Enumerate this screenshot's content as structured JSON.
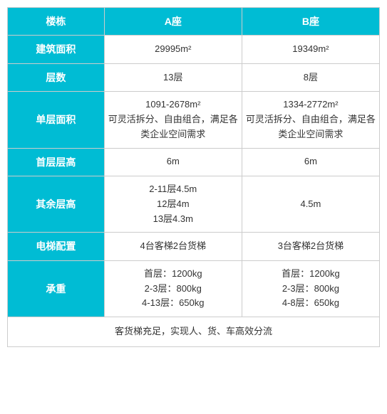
{
  "table": {
    "header_bg": "#00bcd4",
    "header_text_color": "#ffffff",
    "border_color": "#cccccc",
    "body_text_color": "#333333",
    "columns": [
      {
        "label": "楼栋",
        "width_pct": 26
      },
      {
        "label": "A座",
        "width_pct": 37
      },
      {
        "label": "B座",
        "width_pct": 37
      }
    ],
    "rows": [
      {
        "label": "建筑面积",
        "a": "29995m²",
        "b": "19349m²"
      },
      {
        "label": "层数",
        "a": "13层",
        "b": "8层"
      },
      {
        "label": "单层面积",
        "a": "1091-2678m²\n可灵活拆分、自由组合，满足各类企业空间需求",
        "b": "1334-2772m²\n可灵活拆分、自由组合，满足各类企业空间需求"
      },
      {
        "label": "首层层高",
        "a": "6m",
        "b": "6m"
      },
      {
        "label": "其余层高",
        "a": "2-11层4.5m\n12层4m\n13层4.3m",
        "b": "4.5m"
      },
      {
        "label": "电梯配置",
        "a": "4台客梯2台货梯",
        "b": "3台客梯2台货梯"
      },
      {
        "label": "承重",
        "a": "首层：1200kg\n2-3层：800kg\n4-13层：650kg",
        "b": "首层：1200kg\n2-3层：800kg\n4-8层：650kg"
      }
    ],
    "footer": "客货梯充足，实现人、货、车高效分流"
  }
}
